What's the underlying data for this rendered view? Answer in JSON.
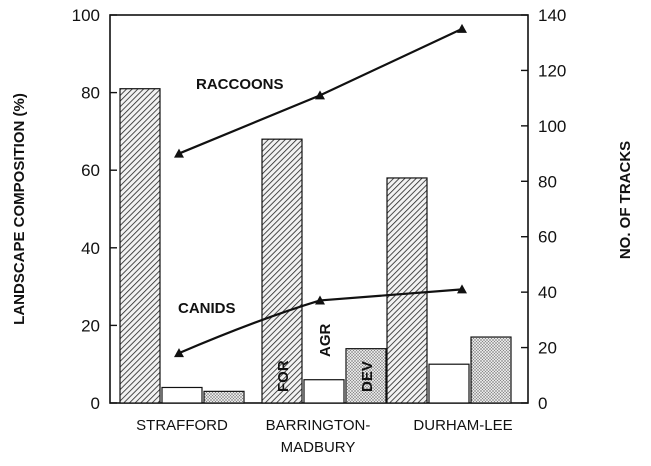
{
  "chart_data": {
    "type": "bar",
    "categories": [
      [
        "STRAFFORD"
      ],
      [
        "BARRINGTON-",
        "MADBURY"
      ],
      [
        "DURHAM-LEE"
      ]
    ],
    "bar_series": [
      {
        "name": "FOR",
        "values": [
          81,
          68,
          58
        ],
        "pattern": "hatch"
      },
      {
        "name": "AGR",
        "values": [
          4,
          6,
          10
        ],
        "pattern": "white"
      },
      {
        "name": "DEV",
        "values": [
          3,
          14,
          17
        ],
        "pattern": "dots"
      }
    ],
    "line_series": [
      {
        "name": "RACCOONS",
        "values": [
          90,
          111,
          135
        ],
        "axis": "right"
      },
      {
        "name": "CANIDS",
        "values": [
          18,
          37,
          41
        ],
        "axis": "right"
      }
    ],
    "ylabel_left": "LANDSCAPE COMPOSITION (%)",
    "ylabel_right": "NO. OF TRACKS",
    "ylim_left": [
      0,
      100
    ],
    "ylim_right": [
      0,
      140
    ],
    "yticks_left": [
      0,
      20,
      40,
      60,
      80,
      100
    ],
    "yticks_right": [
      0,
      20,
      40,
      60,
      80,
      100,
      120,
      140
    ],
    "grid": false,
    "colors": {
      "ink": "#111111",
      "hatch_bg": "#f2f2f2",
      "dots_bg": "#e6e6e6"
    }
  }
}
